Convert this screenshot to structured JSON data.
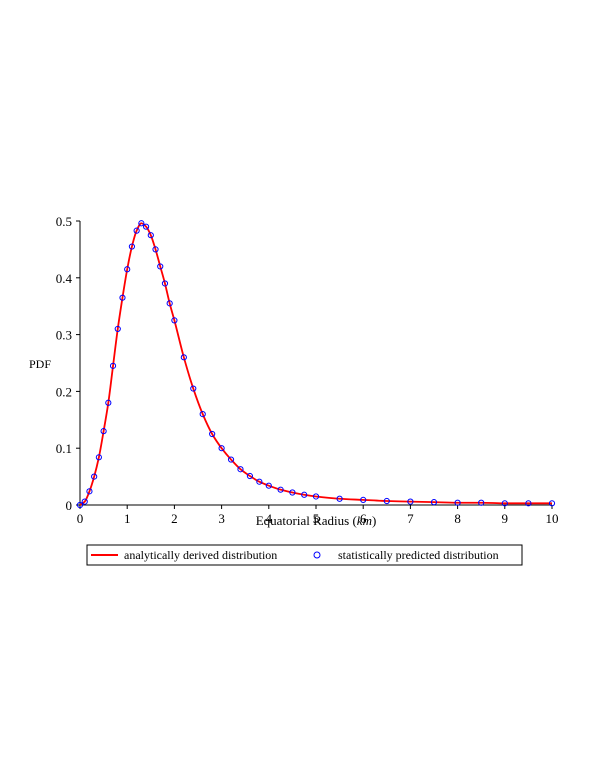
{
  "chart_data": {
    "type": "line",
    "title": "",
    "xlabel": "Equatorial Radius",
    "xlabel_unit": "km",
    "ylabel": "PDF",
    "xlim": [
      0,
      10
    ],
    "ylim": [
      0,
      0.5
    ],
    "x_ticks": [
      0,
      1,
      2,
      3,
      4,
      5,
      6,
      7,
      8,
      9,
      10
    ],
    "x_tick_labels": [
      "0",
      "1",
      "2",
      "3",
      "4",
      "5",
      "6",
      "7",
      "8",
      "9",
      "10"
    ],
    "y_ticks": [
      0,
      0.1,
      0.2,
      0.3,
      0.4,
      0.5
    ],
    "y_tick_labels": [
      "0",
      "0.1",
      "0.2",
      "0.3",
      "0.4",
      "0.5"
    ],
    "grid": false,
    "legend_position": "bottom",
    "series": [
      {
        "name": "analytically derived distribution",
        "style": "line",
        "color": "#ff0000",
        "x": [
          0,
          0.1,
          0.2,
          0.3,
          0.4,
          0.5,
          0.6,
          0.7,
          0.8,
          0.9,
          1.0,
          1.1,
          1.2,
          1.3,
          1.4,
          1.5,
          1.6,
          1.7,
          1.8,
          1.9,
          2.0,
          2.2,
          2.4,
          2.6,
          2.8,
          3.0,
          3.2,
          3.4,
          3.6,
          3.8,
          4.0,
          4.25,
          4.5,
          4.75,
          5.0,
          5.5,
          6.0,
          6.5,
          7.0,
          7.5,
          8.0,
          8.5,
          9.0,
          9.5,
          10.0
        ],
        "y": [
          0,
          0.006,
          0.024,
          0.05,
          0.084,
          0.13,
          0.18,
          0.245,
          0.31,
          0.365,
          0.415,
          0.455,
          0.483,
          0.496,
          0.49,
          0.475,
          0.45,
          0.42,
          0.39,
          0.355,
          0.325,
          0.26,
          0.205,
          0.16,
          0.125,
          0.1,
          0.08,
          0.063,
          0.051,
          0.041,
          0.034,
          0.027,
          0.022,
          0.018,
          0.015,
          0.011,
          0.009,
          0.007,
          0.006,
          0.005,
          0.004,
          0.004,
          0.003,
          0.003,
          0.003
        ]
      },
      {
        "name": "statistically predicted distribution",
        "style": "scatter",
        "color": "#0000ff",
        "marker": "circle",
        "x": [
          0,
          0.1,
          0.2,
          0.3,
          0.4,
          0.5,
          0.6,
          0.7,
          0.8,
          0.9,
          1.0,
          1.1,
          1.2,
          1.3,
          1.4,
          1.5,
          1.6,
          1.7,
          1.8,
          1.9,
          2.0,
          2.2,
          2.4,
          2.6,
          2.8,
          3.0,
          3.2,
          3.4,
          3.6,
          3.8,
          4.0,
          4.25,
          4.5,
          4.75,
          5.0,
          5.5,
          6.0,
          6.5,
          7.0,
          7.5,
          8.0,
          8.5,
          9.0,
          9.5,
          10.0
        ],
        "y": [
          0,
          0.006,
          0.024,
          0.05,
          0.084,
          0.13,
          0.18,
          0.245,
          0.31,
          0.365,
          0.415,
          0.455,
          0.483,
          0.496,
          0.49,
          0.475,
          0.45,
          0.42,
          0.39,
          0.355,
          0.325,
          0.26,
          0.205,
          0.16,
          0.125,
          0.1,
          0.08,
          0.063,
          0.051,
          0.041,
          0.034,
          0.027,
          0.022,
          0.018,
          0.015,
          0.011,
          0.009,
          0.007,
          0.006,
          0.005,
          0.004,
          0.004,
          0.003,
          0.003,
          0.003
        ]
      }
    ]
  }
}
